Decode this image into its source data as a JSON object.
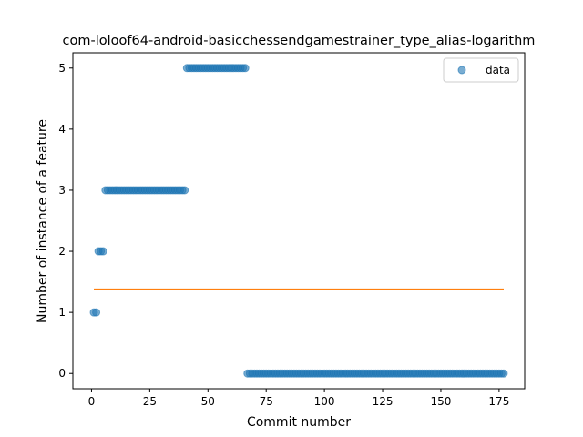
{
  "chart_data": {
    "type": "scatter",
    "title": "com-loloof64-android-basicchessendgamestrainer_type_alias-logarithm",
    "xlabel": "Commit number",
    "ylabel": "Number of instance of a feature",
    "xlim": [
      -8,
      186
    ],
    "ylim": [
      -0.25,
      5.25
    ],
    "xticks": [
      0,
      25,
      50,
      75,
      100,
      125,
      150,
      175
    ],
    "yticks": [
      0,
      1,
      2,
      3,
      4,
      5
    ],
    "grid": false,
    "legend": {
      "placement": "top-right",
      "entries": [
        "data"
      ]
    },
    "colors": {
      "points": "#1f77b4",
      "fit_line": "#ff7f0e"
    },
    "series": [
      {
        "name": "data",
        "kind": "scatter",
        "segments": [
          {
            "x_start": 1,
            "x_end": 2,
            "y": 1
          },
          {
            "x_start": 3,
            "x_end": 5,
            "y": 2
          },
          {
            "x_start": 6,
            "x_end": 40,
            "y": 3
          },
          {
            "x_start": 41,
            "x_end": 66,
            "y": 5
          },
          {
            "x_start": 67,
            "x_end": 177,
            "y": 0
          }
        ]
      },
      {
        "kind": "line",
        "x": [
          1,
          177
        ],
        "y": [
          1.38,
          1.38
        ]
      }
    ]
  }
}
